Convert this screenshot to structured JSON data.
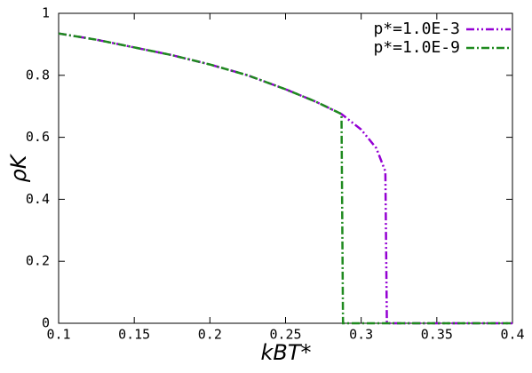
{
  "chart_data": {
    "type": "line",
    "x_label": "kBT*",
    "y_label": "ρK",
    "xlim": [
      0.1,
      0.4
    ],
    "xticks": [
      0.1,
      0.15,
      0.2,
      0.25,
      0.3,
      0.35,
      0.4
    ],
    "ylim": [
      0,
      1
    ],
    "yticks": [
      0,
      0.2,
      0.4,
      0.6,
      0.8,
      1
    ],
    "legend": "top-right",
    "series": [
      {
        "name": "p*=1.0E-3",
        "color": "#9400d3",
        "dash": "dash-dot-dot",
        "x": [
          0.1,
          0.125,
          0.15,
          0.175,
          0.2,
          0.225,
          0.25,
          0.27,
          0.287,
          0.3,
          0.31,
          0.316,
          0.317,
          0.35,
          0.4
        ],
        "values": [
          0.935,
          0.915,
          0.89,
          0.865,
          0.835,
          0.8,
          0.755,
          0.715,
          0.675,
          0.625,
          0.565,
          0.49,
          0,
          0,
          0
        ]
      },
      {
        "name": "p*=1.0E-9",
        "color": "#1f8a1f",
        "dash": "dash-dot",
        "x": [
          0.1,
          0.125,
          0.15,
          0.175,
          0.2,
          0.225,
          0.25,
          0.27,
          0.287,
          0.288,
          0.35,
          0.4
        ],
        "values": [
          0.935,
          0.915,
          0.89,
          0.865,
          0.835,
          0.8,
          0.755,
          0.715,
          0.675,
          0,
          0,
          0
        ]
      }
    ]
  }
}
